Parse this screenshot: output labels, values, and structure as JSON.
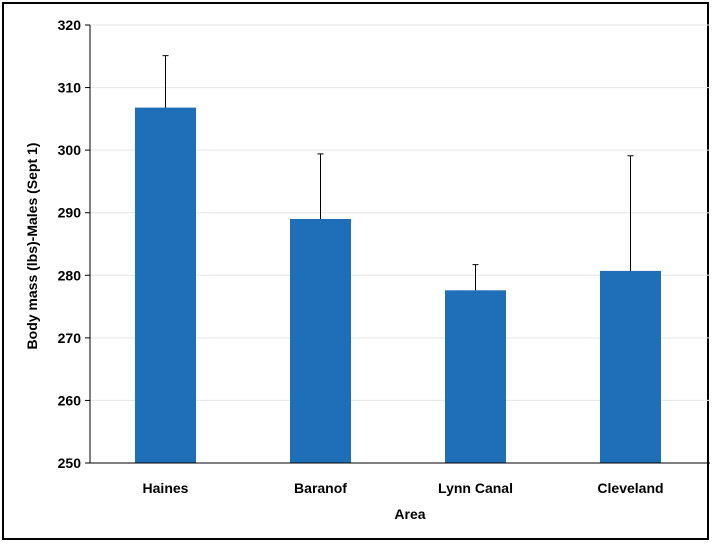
{
  "chart_data": {
    "type": "bar",
    "title": "",
    "xlabel": "Area",
    "ylabel": "Body mass (lbs)-Males (Sept 1)",
    "categories": [
      "Haines",
      "Baranof",
      "Lynn Canal",
      "Cleveland"
    ],
    "values": [
      306.8,
      289.0,
      277.6,
      280.7
    ],
    "error_upper": [
      315.1,
      299.4,
      281.7,
      299.1
    ],
    "ylim": [
      250,
      320
    ],
    "yticks": [
      250,
      260,
      270,
      280,
      290,
      300,
      310,
      320
    ],
    "grid": true,
    "legend": "none",
    "colors": {
      "bar": "#1f6fb8",
      "error_bar": "#000000",
      "gridline": "#e6e6e6",
      "axis": "#000000"
    }
  }
}
